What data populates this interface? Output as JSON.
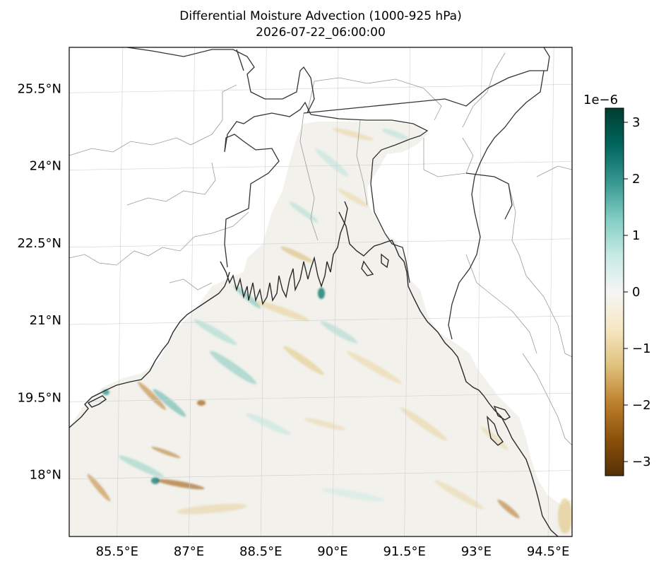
{
  "title": "Differential Moisture Advection (1000-925 hPa)",
  "subtitle": "2026-07-22_06:00:00",
  "map": {
    "projection": "plate-carree",
    "lon_range": [
      84.5,
      95.0
    ],
    "lat_range": [
      16.8,
      26.3
    ],
    "lat_ticks": [
      {
        "value": 18.0,
        "label": "18°N"
      },
      {
        "value": 19.5,
        "label": "19.5°N"
      },
      {
        "value": 21.0,
        "label": "21°N"
      },
      {
        "value": 22.5,
        "label": "22.5°N"
      },
      {
        "value": 24.0,
        "label": "24°N"
      },
      {
        "value": 25.5,
        "label": "25.5°N"
      }
    ],
    "lon_ticks": [
      {
        "value": 85.5,
        "label": "85.5°E"
      },
      {
        "value": 87.0,
        "label": "87°E"
      },
      {
        "value": 88.5,
        "label": "88.5°E"
      },
      {
        "value": 90.0,
        "label": "90°E"
      },
      {
        "value": 91.5,
        "label": "91.5°E"
      },
      {
        "value": 93.0,
        "label": "93°E"
      },
      {
        "value": 94.5,
        "label": "94.5°E"
      }
    ],
    "gridlines": true,
    "field_colormap": "BrBG",
    "features": [
      "coastline",
      "country-borders",
      "state-borders"
    ]
  },
  "colorbar": {
    "orientation": "vertical",
    "placement": "right",
    "exponent_label": "1e−6",
    "range": [
      -3.25,
      3.25
    ],
    "ticks": [
      {
        "value": 3,
        "label": "3"
      },
      {
        "value": 2,
        "label": "2"
      },
      {
        "value": 1,
        "label": "1"
      },
      {
        "value": 0,
        "label": "0"
      },
      {
        "value": -1,
        "label": "−1"
      },
      {
        "value": -2,
        "label": "−2"
      },
      {
        "value": -3,
        "label": "−3"
      }
    ],
    "colors": [
      "#543005",
      "#8c510a",
      "#bf812d",
      "#dfc27d",
      "#f6e8c3",
      "#f5f5f5",
      "#c7eae5",
      "#80cdc1",
      "#35978f",
      "#01665e",
      "#003c30"
    ]
  }
}
